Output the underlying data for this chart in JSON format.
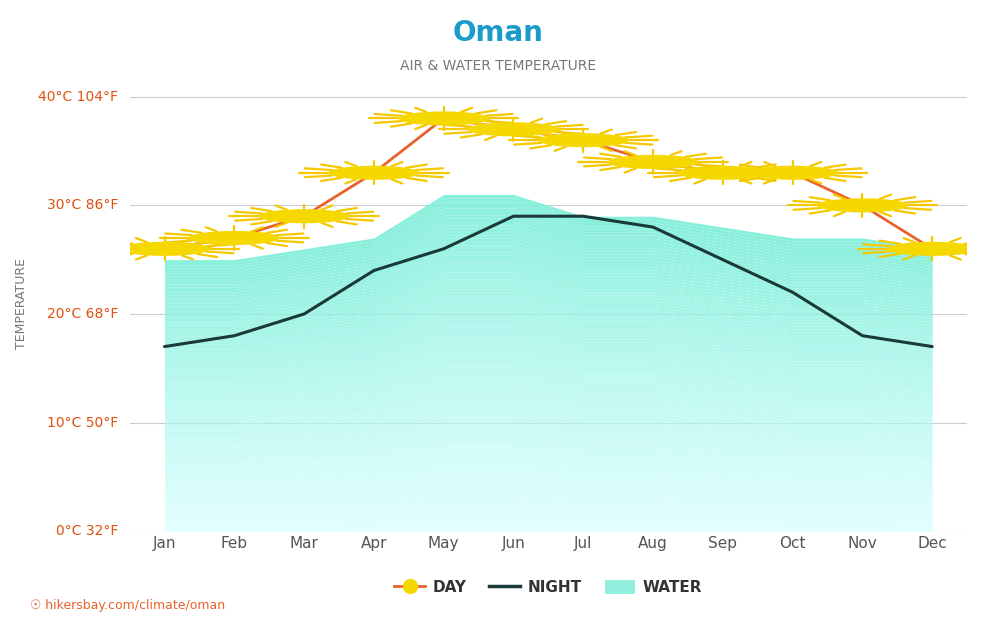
{
  "title": "Oman",
  "subtitle": "AIR & WATER TEMPERATURE",
  "months": [
    "Jan",
    "Feb",
    "Mar",
    "Apr",
    "May",
    "Jun",
    "Jul",
    "Aug",
    "Sep",
    "Oct",
    "Nov",
    "Dec"
  ],
  "day_temps": [
    26,
    27,
    29,
    33,
    38,
    37,
    36,
    34,
    33,
    33,
    30,
    26
  ],
  "night_temps": [
    17,
    18,
    20,
    24,
    26,
    29,
    29,
    28,
    25,
    22,
    18,
    17
  ],
  "water_upper": [
    25,
    25,
    26,
    27,
    31,
    31,
    29,
    29,
    28,
    27,
    27,
    26
  ],
  "water_lower": [
    0,
    0,
    0,
    0,
    0,
    0,
    0,
    0,
    0,
    0,
    0,
    0
  ],
  "ylim": [
    0,
    42
  ],
  "yticks": [
    0,
    10,
    20,
    30,
    40
  ],
  "ytick_labels_c": [
    "0°C",
    "10°C",
    "20°C",
    "30°C",
    "40°C"
  ],
  "ytick_labels_f": [
    "32°F",
    "50°F",
    "68°F",
    "86°F",
    "104°F"
  ],
  "title_color": "#1a9bca",
  "subtitle_color": "#777777",
  "day_color": "#e8622a",
  "night_color": "#1a3a3a",
  "ytick_color": "#e05010",
  "grid_color": "#cccccc",
  "background_color": "#ffffff",
  "watermark": "hikersbay.com/climate/oman",
  "legend_day": "DAY",
  "legend_night": "NIGHT",
  "legend_water": "WATER"
}
